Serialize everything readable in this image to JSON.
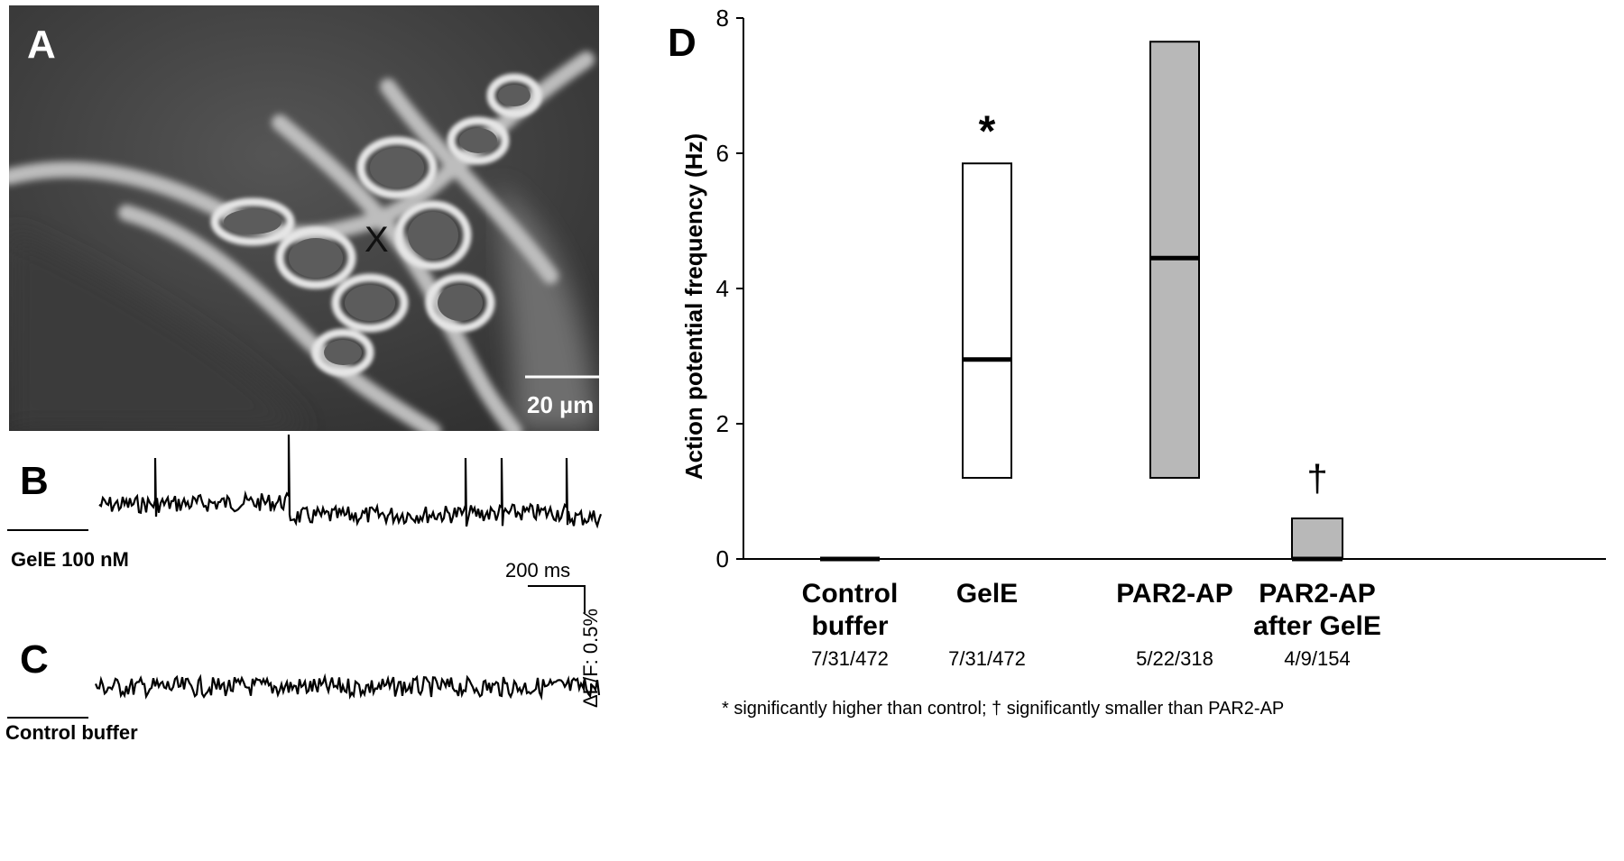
{
  "panel_a": {
    "letter": "A",
    "marker": "X",
    "scale_bar_label": "20 µm"
  },
  "panel_b": {
    "letter": "B",
    "condition_label": "GelE 100 nM",
    "scale_time_label": "200 ms",
    "scale_amp_label": "ΔF/F: 0.5%"
  },
  "panel_c": {
    "letter": "C",
    "condition_label": "Control buffer"
  },
  "panel_d": {
    "letter": "D",
    "footnote": "* significantly higher than control; † significantly smaller than PAR2-AP"
  },
  "colors": {
    "open_box": "#ffffff",
    "shaded_box": "#b8b8b8",
    "line": "#000000"
  },
  "chart_data": {
    "type": "box",
    "ylabel": "Action potential frequency (Hz)",
    "xlabel": "",
    "ylim": [
      0,
      8
    ],
    "yticks": [
      0,
      2,
      4,
      6,
      8
    ],
    "grid": false,
    "categories": [
      {
        "name_lines": [
          "Control",
          "buffer"
        ],
        "n_label": "7/31/472",
        "low": 0,
        "median": 0,
        "high": 0,
        "fill": "open",
        "marker": ""
      },
      {
        "name_lines": [
          "GelE"
        ],
        "n_label": "7/31/472",
        "low": 1.2,
        "median": 2.95,
        "high": 5.85,
        "fill": "open",
        "marker": "*"
      },
      {
        "name_lines": [
          "PAR2-AP"
        ],
        "n_label": "5/22/318",
        "low": 1.2,
        "median": 4.45,
        "high": 7.65,
        "fill": "shaded",
        "marker": ""
      },
      {
        "name_lines": [
          "PAR2-AP",
          "after GelE"
        ],
        "n_label": "4/9/154",
        "low": 0,
        "median": 0,
        "high": 0.6,
        "fill": "shaded",
        "marker": "†"
      }
    ]
  }
}
